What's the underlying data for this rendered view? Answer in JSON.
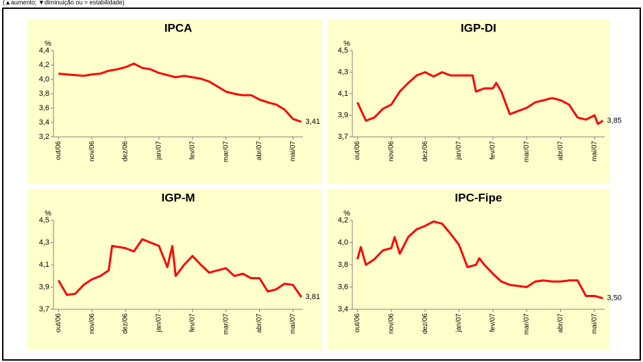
{
  "note": "(▲aumento; ▼diminuição ou = estabilidade)",
  "chart_data": [
    {
      "type": "line",
      "title": "IPCA",
      "y_label": "%",
      "color": "#ff0000",
      "x": [
        0,
        0.25,
        0.5,
        0.75,
        1,
        1.25,
        1.5,
        1.75,
        2,
        2.25,
        2.5,
        2.75,
        3,
        3.25,
        3.5,
        3.75,
        4,
        4.25,
        4.5,
        4.75,
        5,
        5.25,
        5.5,
        5.75,
        6,
        6.25,
        6.5,
        6.75,
        7,
        7.25
      ],
      "values": [
        4.08,
        4.07,
        4.06,
        4.05,
        4.07,
        4.08,
        4.12,
        4.14,
        4.17,
        4.22,
        4.16,
        4.14,
        4.09,
        4.06,
        4.03,
        4.05,
        4.03,
        4.01,
        3.97,
        3.9,
        3.83,
        3.8,
        3.78,
        3.78,
        3.72,
        3.68,
        3.65,
        3.58,
        3.45,
        3.41
      ],
      "annotation": "3,41",
      "xlim": [
        -0.15,
        7.3
      ],
      "xticks": [
        {
          "value": 0,
          "label": "out/06"
        },
        {
          "value": 1,
          "label": "nov/06"
        },
        {
          "value": 2,
          "label": "dez/06"
        },
        {
          "value": 3,
          "label": "jan/07"
        },
        {
          "value": 4,
          "label": "fev/07"
        },
        {
          "value": 5,
          "label": "mar/07"
        },
        {
          "value": 6,
          "label": "abr/07"
        },
        {
          "value": 7,
          "label": "mai/07"
        }
      ],
      "ylim": [
        3.2,
        4.4
      ],
      "yticks": [
        {
          "value": 3.2,
          "label": "3,2"
        },
        {
          "value": 3.4,
          "label": "3,4"
        },
        {
          "value": 3.6,
          "label": "3,6"
        },
        {
          "value": 3.8,
          "label": "3,8"
        },
        {
          "value": 4.0,
          "label": "4,0"
        },
        {
          "value": 4.2,
          "label": "4,2"
        },
        {
          "value": 4.4,
          "label": "4,4"
        }
      ]
    },
    {
      "type": "line",
      "title": "IGP-DI",
      "y_label": "%",
      "color": "#ff0000",
      "x": [
        0,
        0.25,
        0.5,
        0.75,
        1,
        1.25,
        1.5,
        1.75,
        2,
        2.25,
        2.5,
        2.75,
        3,
        3.25,
        3.4,
        3.5,
        3.75,
        4,
        4.1,
        4.25,
        4.5,
        4.75,
        5,
        5.25,
        5.5,
        5.75,
        6,
        6.25,
        6.5,
        6.75,
        7,
        7.1,
        7.25
      ],
      "values": [
        4.02,
        3.85,
        3.88,
        3.96,
        4.0,
        4.12,
        4.2,
        4.27,
        4.3,
        4.26,
        4.3,
        4.27,
        4.27,
        4.27,
        4.27,
        4.12,
        4.15,
        4.15,
        4.2,
        4.12,
        3.91,
        3.94,
        3.97,
        4.02,
        4.04,
        4.06,
        4.04,
        4.0,
        3.88,
        3.86,
        3.9,
        3.82,
        3.85
      ],
      "annotation": "3,85",
      "xlim": [
        -0.15,
        7.3
      ],
      "xticks": [
        {
          "value": 0,
          "label": "out/06"
        },
        {
          "value": 1,
          "label": "nov/06"
        },
        {
          "value": 2,
          "label": "dez/06"
        },
        {
          "value": 3,
          "label": "jan/07"
        },
        {
          "value": 4,
          "label": "fev/07"
        },
        {
          "value": 5,
          "label": "mar/07"
        },
        {
          "value": 6,
          "label": "abr/07"
        },
        {
          "value": 7,
          "label": "mai/07"
        }
      ],
      "ylim": [
        3.7,
        4.5
      ],
      "yticks": [
        {
          "value": 3.7,
          "label": "3,7"
        },
        {
          "value": 3.9,
          "label": "3,9"
        },
        {
          "value": 4.1,
          "label": "4,1"
        },
        {
          "value": 4.3,
          "label": "4,3"
        },
        {
          "value": 4.5,
          "label": "4,5"
        }
      ]
    },
    {
      "type": "line",
      "title": "IGP-M",
      "y_label": "%",
      "color": "#ff0000",
      "x": [
        0,
        0.25,
        0.5,
        0.75,
        1,
        1.25,
        1.5,
        1.6,
        2,
        2.25,
        2.5,
        2.75,
        3,
        3.25,
        3.4,
        3.5,
        3.75,
        4,
        4.25,
        4.5,
        4.75,
        5,
        5.25,
        5.5,
        5.75,
        6,
        6.25,
        6.5,
        6.75,
        7,
        7.25
      ],
      "values": [
        3.96,
        3.83,
        3.84,
        3.92,
        3.97,
        4.0,
        4.05,
        4.27,
        4.25,
        4.22,
        4.33,
        4.3,
        4.27,
        4.08,
        4.27,
        4.0,
        4.1,
        4.18,
        4.1,
        4.03,
        4.05,
        4.07,
        4.0,
        4.02,
        3.98,
        3.98,
        3.86,
        3.88,
        3.93,
        3.92,
        3.81
      ],
      "annotation": "3,81",
      "xlim": [
        -0.15,
        7.3
      ],
      "xticks": [
        {
          "value": 0,
          "label": "out/06"
        },
        {
          "value": 1,
          "label": "nov/06"
        },
        {
          "value": 2,
          "label": "dez/06"
        },
        {
          "value": 3,
          "label": "jan/07"
        },
        {
          "value": 4,
          "label": "fev/07"
        },
        {
          "value": 5,
          "label": "mar/07"
        },
        {
          "value": 6,
          "label": "abr/07"
        },
        {
          "value": 7,
          "label": "mai/07"
        }
      ],
      "ylim": [
        3.7,
        4.5
      ],
      "yticks": [
        {
          "value": 3.7,
          "label": "3,7"
        },
        {
          "value": 3.9,
          "label": "3,9"
        },
        {
          "value": 4.1,
          "label": "4,1"
        },
        {
          "value": 4.3,
          "label": "4,3"
        },
        {
          "value": 4.5,
          "label": "4,5"
        }
      ]
    },
    {
      "type": "line",
      "title": "IPC-Fipe",
      "y_label": "%",
      "color": "#ff0000",
      "x": [
        0,
        0.1,
        0.25,
        0.5,
        0.75,
        1,
        1.1,
        1.25,
        1.5,
        1.75,
        2,
        2.25,
        2.5,
        2.75,
        3,
        3.25,
        3.5,
        3.6,
        3.75,
        4,
        4.25,
        4.5,
        4.75,
        5,
        5.25,
        5.5,
        5.75,
        6,
        6.25,
        6.5,
        6.75,
        7,
        7.25
      ],
      "values": [
        3.85,
        3.96,
        3.8,
        3.85,
        3.93,
        3.95,
        4.05,
        3.9,
        4.05,
        4.12,
        4.15,
        4.19,
        4.17,
        4.08,
        3.98,
        3.78,
        3.8,
        3.86,
        3.8,
        3.72,
        3.65,
        3.62,
        3.61,
        3.6,
        3.65,
        3.66,
        3.65,
        3.65,
        3.66,
        3.66,
        3.52,
        3.52,
        3.5
      ],
      "annotation": "3,50",
      "xlim": [
        -0.15,
        7.3
      ],
      "xticks": [
        {
          "value": 0,
          "label": "out/06"
        },
        {
          "value": 1,
          "label": "nov/06"
        },
        {
          "value": 2,
          "label": "dez/06"
        },
        {
          "value": 3,
          "label": "jan/07"
        },
        {
          "value": 4,
          "label": "fev/07"
        },
        {
          "value": 5,
          "label": "mar/07"
        },
        {
          "value": 6,
          "label": "abr/07"
        },
        {
          "value": 7,
          "label": "mai/07"
        }
      ],
      "ylim": [
        3.4,
        4.2
      ],
      "yticks": [
        {
          "value": 3.4,
          "label": "3,4"
        },
        {
          "value": 3.6,
          "label": "3,6"
        },
        {
          "value": 3.8,
          "label": "3,8"
        },
        {
          "value": 4.0,
          "label": "4,0"
        },
        {
          "value": 4.2,
          "label": "4,2"
        }
      ]
    }
  ]
}
